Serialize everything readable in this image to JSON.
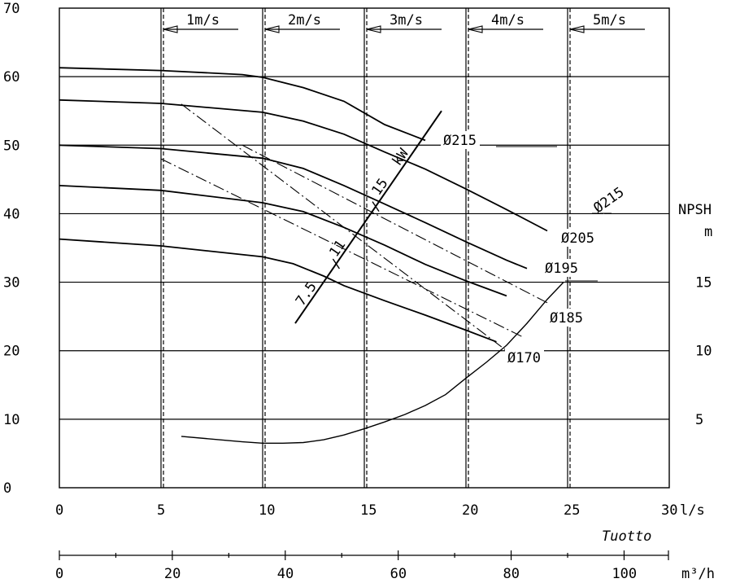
{
  "chart_data": {
    "type": "line",
    "x_axis": {
      "label": "Tuotto",
      "unit": "l/s",
      "range": [
        0,
        30
      ],
      "ticks": [
        "0",
        "5",
        "10",
        "15",
        "20",
        "25",
        "30"
      ]
    },
    "x2_axis": {
      "unit": "m³/h",
      "range": [
        0,
        108
      ],
      "ticks": [
        "0",
        "20",
        "40",
        "60",
        "80",
        "100"
      ]
    },
    "y_axis": {
      "range": [
        0,
        70
      ],
      "ticks": [
        "0",
        "10",
        "20",
        "30",
        "40",
        "50",
        "60",
        "70"
      ]
    },
    "y2_axis": {
      "label": "NPSH",
      "unit": "m",
      "ticks": [
        "5",
        "10",
        "15"
      ]
    },
    "velocity_lines": [
      {
        "label": "1m/s",
        "x": 5
      },
      {
        "label": "2m/s",
        "x": 10
      },
      {
        "label": "3m/s",
        "x": 15
      },
      {
        "label": "4m/s",
        "x": 20
      },
      {
        "label": "5m/s",
        "x": 25
      }
    ],
    "series": [
      {
        "name": "Ø215",
        "x": [
          0,
          5,
          9,
          10,
          12,
          14,
          16,
          18
        ],
        "y": [
          61.3,
          60.9,
          60.3,
          59.9,
          58.4,
          56.4,
          53.0,
          50.7
        ]
      },
      {
        "name": "Ø205",
        "x": [
          0,
          5,
          10,
          12,
          14,
          16,
          18,
          20,
          22,
          24
        ],
        "y": [
          56.6,
          56.1,
          54.8,
          53.5,
          51.6,
          49.0,
          46.5,
          43.6,
          40.6,
          37.5
        ]
      },
      {
        "name": "Ø195",
        "x": [
          0,
          5,
          10,
          12,
          14,
          16,
          18,
          20,
          22,
          23
        ],
        "y": [
          50.0,
          49.5,
          48.1,
          46.6,
          44.1,
          41.4,
          38.7,
          35.9,
          33.2,
          32.0
        ]
      },
      {
        "name": "Ø185",
        "x": [
          0,
          5,
          10,
          12,
          14,
          16,
          18,
          20,
          22
        ],
        "y": [
          44.1,
          43.4,
          41.6,
          40.3,
          38.0,
          35.4,
          32.6,
          30.2,
          28.0
        ]
      },
      {
        "name": "Ø170",
        "x": [
          0,
          5,
          10,
          11.5,
          13,
          14,
          16,
          18,
          20,
          21.5
        ],
        "y": [
          36.3,
          35.3,
          33.7,
          32.7,
          30.9,
          29.5,
          27.3,
          25.2,
          23.0,
          21.3
        ]
      }
    ],
    "efficiency_lines": [
      {
        "x": [
          6,
          22
        ],
        "y": [
          56,
          20
        ]
      },
      {
        "x": [
          5,
          22.8
        ],
        "y": [
          48,
          22
        ]
      },
      {
        "x": [
          9,
          24
        ],
        "y": [
          50,
          27
        ]
      }
    ],
    "power_axis": {
      "x": [
        11.6,
        18.8
      ],
      "y": [
        24,
        55
      ],
      "labels": [
        "7.5",
        "11",
        "15",
        "kW"
      ]
    },
    "npsh_curve": {
      "name": "Ø215",
      "x": [
        6,
        9,
        10,
        11,
        12,
        13,
        14,
        15,
        16,
        17,
        18,
        19,
        20,
        21,
        22,
        23,
        24,
        24.8
      ],
      "y": [
        7.5,
        6.7,
        6.5,
        6.5,
        6.6,
        7.0,
        7.7,
        8.6,
        9.6,
        10.7,
        12.0,
        13.6,
        16.0,
        18.3,
        20.8,
        24.0,
        27.5,
        30.0
      ]
    },
    "curve_labels": [
      "Ø215",
      "Ø205",
      "Ø195",
      "Ø185",
      "Ø170",
      "Ø215"
    ]
  }
}
